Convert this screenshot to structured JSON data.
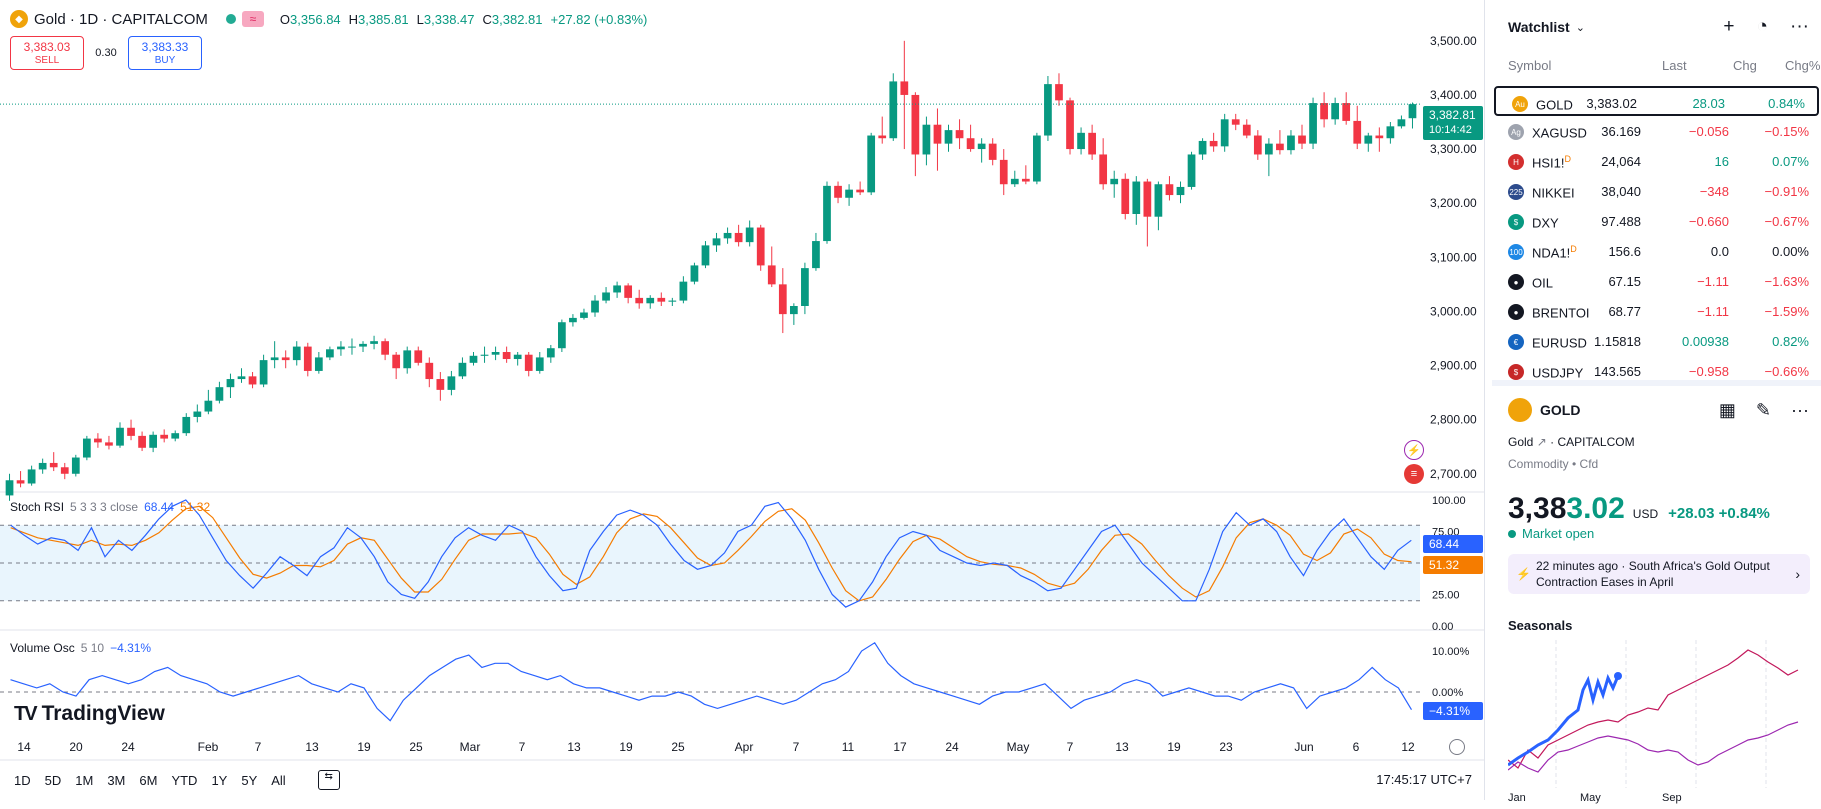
{
  "chart": {
    "symbol_title": "Gold · 1D · CAPITALCOM",
    "ohlc": {
      "o_label": "O",
      "o": "3,356.84",
      "h_label": "H",
      "h": "3,385.81",
      "l_label": "L",
      "l": "3,338.47",
      "c_label": "C",
      "c": "3,382.81",
      "change": "+27.82 (+0.83%)"
    },
    "sell": {
      "price": "3,383.03",
      "label": "SELL"
    },
    "buy": {
      "price": "3,383.33",
      "label": "BUY"
    },
    "spread": "0.30",
    "price_tag": {
      "price": "3,382.81",
      "countdown": "10:14:42"
    },
    "price_axis": [
      "3,500.00",
      "3,400.00",
      "3,300.00",
      "3,200.00",
      "3,100.00",
      "3,000.00",
      "2,900.00",
      "2,800.00",
      "2,700.00"
    ],
    "stoch": {
      "name": "Stoch RSI",
      "params": "5 3 3 3 close",
      "k": "68.44",
      "d": "51.32",
      "axis": [
        "100.00",
        "75.00",
        "25.00",
        "0.00"
      ]
    },
    "volosc": {
      "name": "Volume Osc",
      "params": "5 10",
      "value": "−4.31%",
      "axis": [
        "10.00%",
        "0.00%"
      ]
    },
    "brand": "TradingView",
    "time_axis": [
      "14",
      "20",
      "24",
      "Feb",
      "7",
      "13",
      "19",
      "25",
      "Mar",
      "7",
      "13",
      "19",
      "25",
      "Apr",
      "7",
      "11",
      "17",
      "24",
      "May",
      "7",
      "13",
      "19",
      "23",
      "Jun",
      "6",
      "12"
    ],
    "ranges": [
      "1D",
      "5D",
      "1M",
      "3M",
      "6M",
      "YTD",
      "1Y",
      "5Y",
      "All"
    ],
    "clock": "17:45:17 UTC+7"
  },
  "chart_data": {
    "type": "candlestick",
    "ylim": [
      2670,
      3520
    ],
    "candles": [
      [
        2660,
        2700,
        2650,
        2688
      ],
      [
        2688,
        2705,
        2675,
        2682
      ],
      [
        2682,
        2715,
        2678,
        2708
      ],
      [
        2708,
        2728,
        2700,
        2720
      ],
      [
        2720,
        2740,
        2705,
        2712
      ],
      [
        2712,
        2720,
        2690,
        2700
      ],
      [
        2700,
        2735,
        2695,
        2730
      ],
      [
        2730,
        2770,
        2725,
        2765
      ],
      [
        2765,
        2775,
        2748,
        2758
      ],
      [
        2758,
        2770,
        2745,
        2752
      ],
      [
        2752,
        2795,
        2748,
        2785
      ],
      [
        2785,
        2800,
        2762,
        2770
      ],
      [
        2770,
        2778,
        2742,
        2748
      ],
      [
        2748,
        2778,
        2740,
        2772
      ],
      [
        2772,
        2782,
        2758,
        2765
      ],
      [
        2765,
        2780,
        2760,
        2775
      ],
      [
        2775,
        2812,
        2770,
        2805
      ],
      [
        2805,
        2828,
        2795,
        2815
      ],
      [
        2815,
        2855,
        2810,
        2835
      ],
      [
        2835,
        2870,
        2830,
        2860
      ],
      [
        2860,
        2885,
        2840,
        2875
      ],
      [
        2875,
        2895,
        2868,
        2880
      ],
      [
        2880,
        2888,
        2858,
        2865
      ],
      [
        2865,
        2920,
        2860,
        2910
      ],
      [
        2910,
        2945,
        2895,
        2915
      ],
      [
        2915,
        2928,
        2895,
        2910
      ],
      [
        2910,
        2945,
        2900,
        2935
      ],
      [
        2935,
        2942,
        2880,
        2890
      ],
      [
        2890,
        2925,
        2885,
        2915
      ],
      [
        2915,
        2935,
        2910,
        2930
      ],
      [
        2930,
        2945,
        2918,
        2935
      ],
      [
        2935,
        2950,
        2920,
        2935
      ],
      [
        2935,
        2945,
        2925,
        2940
      ],
      [
        2940,
        2955,
        2930,
        2945
      ],
      [
        2945,
        2950,
        2910,
        2920
      ],
      [
        2920,
        2925,
        2875,
        2895
      ],
      [
        2895,
        2935,
        2885,
        2928
      ],
      [
        2928,
        2935,
        2900,
        2905
      ],
      [
        2905,
        2915,
        2860,
        2875
      ],
      [
        2875,
        2888,
        2835,
        2855
      ],
      [
        2855,
        2890,
        2845,
        2880
      ],
      [
        2880,
        2915,
        2875,
        2905
      ],
      [
        2905,
        2925,
        2900,
        2918
      ],
      [
        2918,
        2935,
        2905,
        2920
      ],
      [
        2920,
        2935,
        2910,
        2925
      ],
      [
        2925,
        2935,
        2905,
        2912
      ],
      [
        2912,
        2925,
        2900,
        2920
      ],
      [
        2920,
        2925,
        2880,
        2890
      ],
      [
        2890,
        2925,
        2885,
        2915
      ],
      [
        2915,
        2938,
        2905,
        2932
      ],
      [
        2932,
        2985,
        2925,
        2980
      ],
      [
        2980,
        2995,
        2972,
        2988
      ],
      [
        2988,
        3005,
        2985,
        2998
      ],
      [
        2998,
        3030,
        2990,
        3020
      ],
      [
        3020,
        3045,
        3015,
        3035
      ],
      [
        3035,
        3055,
        3025,
        3048
      ],
      [
        3048,
        3052,
        3015,
        3025
      ],
      [
        3025,
        3040,
        3005,
        3015
      ],
      [
        3015,
        3030,
        3005,
        3025
      ],
      [
        3025,
        3035,
        3010,
        3018
      ],
      [
        3018,
        3025,
        3010,
        3020
      ],
      [
        3020,
        3065,
        3015,
        3055
      ],
      [
        3055,
        3090,
        3050,
        3085
      ],
      [
        3085,
        3130,
        3080,
        3122
      ],
      [
        3122,
        3145,
        3110,
        3135
      ],
      [
        3135,
        3155,
        3125,
        3145
      ],
      [
        3145,
        3160,
        3120,
        3128
      ],
      [
        3128,
        3168,
        3120,
        3155
      ],
      [
        3155,
        3160,
        3075,
        3085
      ],
      [
        3085,
        3120,
        3045,
        3050
      ],
      [
        3050,
        3080,
        2960,
        2995
      ],
      [
        2995,
        3015,
        2975,
        3010
      ],
      [
        3010,
        3090,
        2995,
        3080
      ],
      [
        3080,
        3145,
        3075,
        3130
      ],
      [
        3130,
        3240,
        3125,
        3232
      ],
      [
        3232,
        3240,
        3200,
        3210
      ],
      [
        3210,
        3235,
        3195,
        3225
      ],
      [
        3225,
        3240,
        3215,
        3220
      ],
      [
        3220,
        3330,
        3215,
        3325
      ],
      [
        3325,
        3360,
        3310,
        3320
      ],
      [
        3320,
        3440,
        3315,
        3425
      ],
      [
        3425,
        3500,
        3300,
        3400
      ],
      [
        3400,
        3405,
        3250,
        3290
      ],
      [
        3290,
        3360,
        3270,
        3345
      ],
      [
        3345,
        3375,
        3260,
        3310
      ],
      [
        3310,
        3345,
        3295,
        3335
      ],
      [
        3335,
        3355,
        3300,
        3320
      ],
      [
        3320,
        3345,
        3295,
        3300
      ],
      [
        3300,
        3320,
        3275,
        3310
      ],
      [
        3310,
        3320,
        3270,
        3280
      ],
      [
        3280,
        3300,
        3215,
        3235
      ],
      [
        3235,
        3260,
        3230,
        3245
      ],
      [
        3245,
        3270,
        3235,
        3240
      ],
      [
        3240,
        3330,
        3235,
        3325
      ],
      [
        3325,
        3435,
        3315,
        3420
      ],
      [
        3420,
        3440,
        3380,
        3390
      ],
      [
        3390,
        3395,
        3290,
        3300
      ],
      [
        3300,
        3340,
        3290,
        3330
      ],
      [
        3330,
        3345,
        3280,
        3290
      ],
      [
        3290,
        3320,
        3225,
        3235
      ],
      [
        3235,
        3260,
        3210,
        3245
      ],
      [
        3245,
        3255,
        3170,
        3180
      ],
      [
        3180,
        3250,
        3160,
        3240
      ],
      [
        3240,
        3245,
        3120,
        3175
      ],
      [
        3175,
        3240,
        3150,
        3235
      ],
      [
        3235,
        3250,
        3205,
        3215
      ],
      [
        3215,
        3240,
        3200,
        3230
      ],
      [
        3230,
        3295,
        3225,
        3290
      ],
      [
        3290,
        3320,
        3280,
        3315
      ],
      [
        3315,
        3330,
        3295,
        3305
      ],
      [
        3305,
        3365,
        3295,
        3355
      ],
      [
        3355,
        3365,
        3335,
        3345
      ],
      [
        3345,
        3355,
        3320,
        3325
      ],
      [
        3325,
        3335,
        3280,
        3290
      ],
      [
        3290,
        3320,
        3250,
        3310
      ],
      [
        3310,
        3335,
        3290,
        3298
      ],
      [
        3298,
        3335,
        3290,
        3325
      ],
      [
        3325,
        3345,
        3300,
        3310
      ],
      [
        3310,
        3395,
        3300,
        3385
      ],
      [
        3385,
        3405,
        3340,
        3355
      ],
      [
        3355,
        3395,
        3345,
        3385
      ],
      [
        3385,
        3405,
        3345,
        3352
      ],
      [
        3352,
        3380,
        3300,
        3310
      ],
      [
        3310,
        3330,
        3295,
        3325
      ],
      [
        3325,
        3340,
        3295,
        3320
      ],
      [
        3320,
        3350,
        3310,
        3342
      ],
      [
        3342,
        3362,
        3338,
        3355
      ],
      [
        3357,
        3386,
        3338,
        3383
      ]
    ],
    "stoch_k": [
      80,
      72,
      65,
      70,
      68,
      60,
      78,
      55,
      68,
      60,
      72,
      85,
      95,
      100,
      88,
      70,
      52,
      40,
      30,
      42,
      55,
      48,
      40,
      55,
      62,
      78,
      70,
      55,
      35,
      25,
      22,
      35,
      55,
      70,
      78,
      72,
      68,
      80,
      75,
      55,
      40,
      28,
      30,
      60,
      75,
      88,
      92,
      88,
      80,
      65,
      52,
      45,
      48,
      58,
      75,
      80,
      95,
      98,
      85,
      68,
      45,
      25,
      15,
      20,
      35,
      55,
      70,
      75,
      72,
      60,
      55,
      50,
      48,
      50,
      48,
      40,
      35,
      28,
      30,
      45,
      60,
      75,
      80,
      65,
      50,
      40,
      30,
      20,
      20,
      45,
      75,
      90,
      80,
      85,
      75,
      55,
      40,
      60,
      75,
      85,
      70,
      55,
      45,
      60,
      68
    ],
    "stoch_d": [
      78,
      74,
      70,
      68,
      66,
      64,
      68,
      64,
      65,
      64,
      68,
      74,
      84,
      93,
      95,
      86,
      70,
      54,
      41,
      38,
      42,
      48,
      48,
      47,
      52,
      65,
      70,
      68,
      53,
      38,
      27,
      27,
      37,
      53,
      68,
      73,
      73,
      73,
      74,
      70,
      57,
      41,
      33,
      39,
      55,
      74,
      85,
      89,
      87,
      78,
      66,
      54,
      48,
      50,
      60,
      71,
      83,
      91,
      93,
      84,
      66,
      46,
      28,
      20,
      23,
      37,
      53,
      67,
      72,
      69,
      62,
      55,
      51,
      49,
      48,
      46,
      41,
      34,
      31,
      34,
      45,
      60,
      72,
      73,
      65,
      52,
      40,
      30,
      23,
      28,
      47,
      70,
      82,
      85,
      80,
      72,
      57,
      52,
      58,
      73,
      77,
      70,
      57,
      52,
      51
    ],
    "vol_osc": [
      3,
      2,
      1,
      2,
      0,
      -1,
      3,
      4,
      3,
      2,
      3,
      5,
      6,
      4,
      3,
      2,
      0,
      -1,
      0,
      1,
      2,
      3,
      4,
      2,
      1,
      0,
      2,
      1,
      -4,
      -7,
      -2,
      1,
      4,
      6,
      8,
      9,
      6,
      7,
      7,
      5,
      4,
      3,
      4,
      2,
      1,
      1,
      0,
      -1,
      -2,
      -1,
      -1,
      0,
      -1,
      -3,
      -4,
      -3,
      -2,
      -1,
      -2,
      -3,
      -2,
      0,
      2,
      3,
      5,
      10,
      12,
      7,
      4,
      2,
      1,
      0,
      -1,
      -2,
      -3,
      -1,
      0,
      0,
      1,
      2,
      -1,
      -4,
      -2,
      -1,
      0,
      2,
      3,
      2,
      -1,
      0,
      1,
      0,
      -1,
      -1,
      -2,
      0,
      1,
      2,
      1,
      -4,
      -1,
      0,
      1,
      3,
      6,
      3,
      1,
      -4.31
    ]
  },
  "watchlist": {
    "title": "Watchlist",
    "cols": [
      "Symbol",
      "Last",
      "Chg",
      "Chg%"
    ],
    "rows": [
      {
        "sym": "GOLD",
        "sup": "",
        "last": "3,383.02",
        "chg": "28.03",
        "pct": "0.84%",
        "dir": "pos",
        "ic": "#f0a30a",
        "glyph": "Au"
      },
      {
        "sym": "XAGUSD",
        "sup": "",
        "last": "36.169",
        "chg": "−0.056",
        "pct": "−0.15%",
        "dir": "neg",
        "ic": "#9ea3ae",
        "glyph": "Ag"
      },
      {
        "sym": "HSI1!",
        "sup": "D",
        "last": "24,064",
        "chg": "16",
        "pct": "0.07%",
        "dir": "pos",
        "ic": "#d32f2f",
        "glyph": "H"
      },
      {
        "sym": "NIKKEI",
        "sup": "",
        "last": "38,040",
        "chg": "−348",
        "pct": "−0.91%",
        "dir": "neg",
        "ic": "#2c4b8c",
        "glyph": "225"
      },
      {
        "sym": "DXY",
        "sup": "",
        "last": "97.488",
        "chg": "−0.660",
        "pct": "−0.67%",
        "dir": "neg",
        "ic": "#089981",
        "glyph": "$"
      },
      {
        "sym": "NDA1!",
        "sup": "D",
        "last": "156.6",
        "chg": "0.0",
        "pct": "0.00%",
        "dir": "neu",
        "ic": "#1e88e5",
        "glyph": "100"
      },
      {
        "sym": "OIL",
        "sup": "",
        "last": "67.15",
        "chg": "−1.11",
        "pct": "−1.63%",
        "dir": "neg",
        "ic": "#131722",
        "glyph": "●"
      },
      {
        "sym": "BRENTOI",
        "sup": "",
        "last": "68.77",
        "chg": "−1.11",
        "pct": "−1.59%",
        "dir": "neg",
        "ic": "#131722",
        "glyph": "●"
      },
      {
        "sym": "EURUSD",
        "sup": "",
        "last": "1.15818",
        "chg": "0.00938",
        "pct": "0.82%",
        "dir": "pos",
        "ic": "#1565c0",
        "glyph": "€"
      },
      {
        "sym": "USDJPY",
        "sup": "",
        "last": "143.565",
        "chg": "−0.958",
        "pct": "−0.66%",
        "dir": "neg",
        "ic": "#c62828",
        "glyph": "$"
      }
    ]
  },
  "details": {
    "symbol": "GOLD",
    "name": "Gold",
    "exchange": "· CAPITALCOM",
    "category": "Commodity • Cfd",
    "price_main": "3,38",
    "price_tail": "3.02",
    "currency": "USD",
    "change": "+28.03  +0.84%",
    "market": "Market open",
    "news_time": "22 minutes ago",
    "news_text": "· South Africa's Gold Output Contraction Eases in April",
    "seasonals": "Seasonals",
    "seas_axis": [
      "Jan",
      "May",
      "Sep"
    ]
  },
  "colors": {
    "up": "#089981",
    "down": "#f23645",
    "stoch_k": "#2962ff",
    "stoch_d": "#f57c00",
    "accent": "#2962ff"
  }
}
